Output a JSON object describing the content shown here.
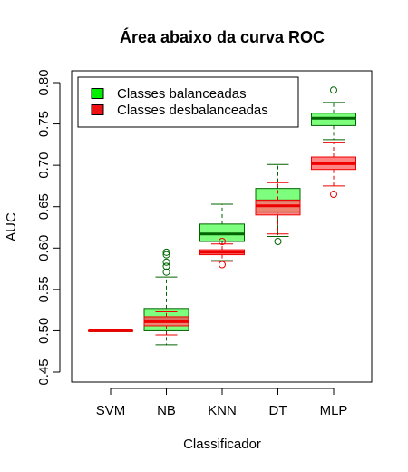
{
  "chart_data": {
    "type": "boxplot",
    "title": "Área abaixo da curva ROC",
    "xlabel": "Classificador",
    "ylabel": "AUC",
    "ylim": [
      0.45,
      0.8
    ],
    "yticks": [
      "0.45",
      "0.50",
      "0.55",
      "0.60",
      "0.65",
      "0.70",
      "0.75",
      "0.80"
    ],
    "categories": [
      "SVM",
      "NB",
      "KNN",
      "DT",
      "MLP"
    ],
    "legend_position": "top-left",
    "grid": false,
    "series": [
      {
        "name": "Classes balanceadas",
        "fill": "#66ff66",
        "legend_fill": "#00ee00",
        "stroke": "#006400",
        "boxes": [
          {
            "category": "SVM",
            "q1": 0.5,
            "median": 0.5,
            "q3": 0.5,
            "whisker_low": 0.5,
            "whisker_high": 0.5,
            "outliers": []
          },
          {
            "category": "NB",
            "q1": 0.5,
            "median": 0.515,
            "q3": 0.527,
            "whisker_low": 0.483,
            "whisker_high": 0.565,
            "outliers": [
              0.571,
              0.578,
              0.583,
              0.592,
              0.595
            ]
          },
          {
            "category": "KNN",
            "q1": 0.608,
            "median": 0.617,
            "q3": 0.629,
            "whisker_low": 0.585,
            "whisker_high": 0.653,
            "outliers": []
          },
          {
            "category": "DT",
            "q1": 0.643,
            "median": 0.657,
            "q3": 0.672,
            "whisker_low": 0.614,
            "whisker_high": 0.701,
            "outliers": [
              0.608
            ]
          },
          {
            "category": "MLP",
            "q1": 0.748,
            "median": 0.757,
            "q3": 0.763,
            "whisker_low": 0.731,
            "whisker_high": 0.776,
            "outliers": [
              0.791
            ]
          }
        ]
      },
      {
        "name": "Classes desbalanceadas",
        "fill": "#ff7070",
        "legend_fill": "#ee1111",
        "stroke": "#ee0000",
        "boxes": [
          {
            "category": "SVM",
            "q1": 0.5,
            "median": 0.5,
            "q3": 0.5,
            "whisker_low": 0.5,
            "whisker_high": 0.5,
            "outliers": []
          },
          {
            "category": "NB",
            "q1": 0.506,
            "median": 0.511,
            "q3": 0.517,
            "whisker_low": 0.495,
            "whisker_high": 0.523,
            "outliers": []
          },
          {
            "category": "KNN",
            "q1": 0.592,
            "median": 0.595,
            "q3": 0.598,
            "whisker_low": 0.584,
            "whisker_high": 0.605,
            "outliers": [
              0.58,
              0.608
            ]
          },
          {
            "category": "DT",
            "q1": 0.64,
            "median": 0.651,
            "q3": 0.658,
            "whisker_low": 0.617,
            "whisker_high": 0.679,
            "outliers": []
          },
          {
            "category": "MLP",
            "q1": 0.695,
            "median": 0.702,
            "q3": 0.71,
            "whisker_low": 0.675,
            "whisker_high": 0.728,
            "outliers": [
              0.665
            ]
          }
        ]
      }
    ]
  }
}
